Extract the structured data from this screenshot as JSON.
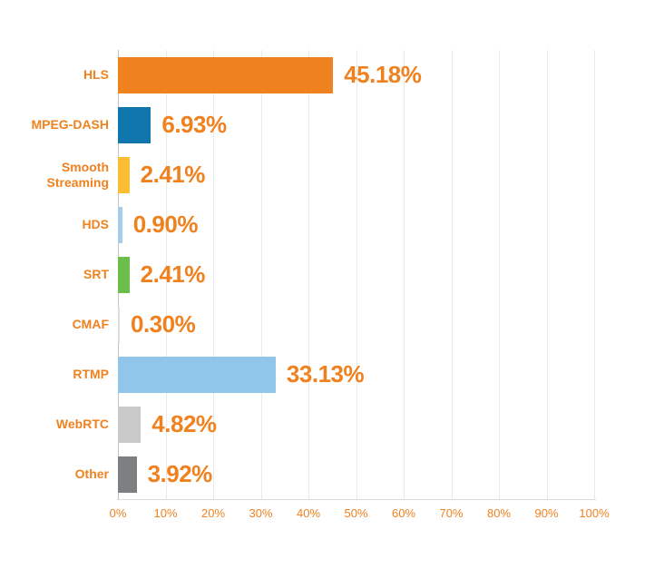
{
  "chart_data": {
    "type": "bar",
    "orientation": "horizontal",
    "title": "",
    "categories": [
      "HLS",
      "MPEG-DASH",
      "Smooth Streaming",
      "HDS",
      "SRT",
      "CMAF",
      "RTMP",
      "WebRTC",
      "Other"
    ],
    "values": [
      45.18,
      6.93,
      2.41,
      0.9,
      2.41,
      0.3,
      33.13,
      4.82,
      3.92
    ],
    "value_labels": [
      "45.18%",
      "6.93%",
      "2.41%",
      "0.90%",
      "2.41%",
      "0.30%",
      "33.13%",
      "4.82%",
      "3.92%"
    ],
    "bar_colors": [
      "#F0811F",
      "#1076AE",
      "#FBBE33",
      "#A6CDEE",
      "#6CBE4B",
      "#DCDCDC",
      "#8FC6EA",
      "#C9C9C9",
      "#7E7F81"
    ],
    "x_ticks": [
      "0%",
      "10%",
      "20%",
      "30%",
      "40%",
      "50%",
      "60%",
      "70%",
      "80%",
      "90%",
      "100%"
    ],
    "xlabel": "",
    "ylabel": "",
    "xlim": [
      0,
      100
    ],
    "grid": true,
    "legend": "none",
    "colors": {
      "label_text": "#F0811F",
      "value_text": "#F0811F",
      "tick_text": "#F0811F",
      "gridline": "#EAEAEA",
      "zero_line": "#C4C4C4",
      "axis_line": "#DCDCDC",
      "background": "#FFFFFF"
    }
  }
}
